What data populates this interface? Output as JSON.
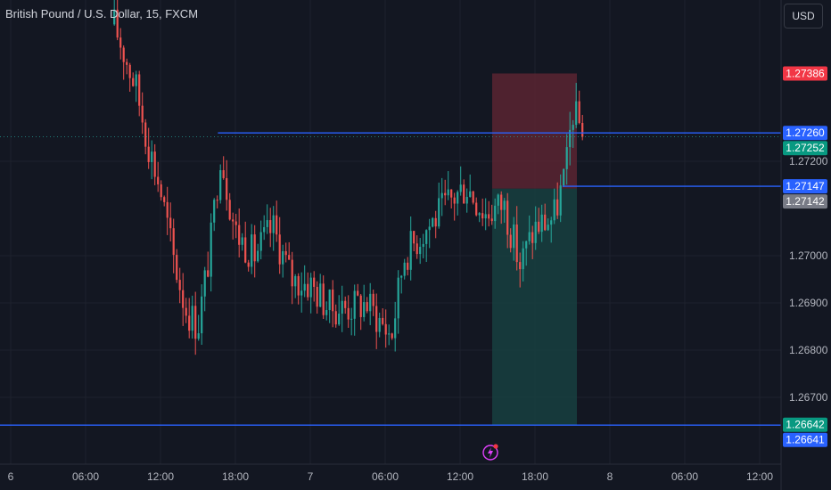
{
  "title": "British Pound / U.S. Dollar, 15, FXCM",
  "currency_button": "USD",
  "icons": {
    "alert": "lightning-icon"
  },
  "colors": {
    "background": "#131722",
    "up": "#26a69a",
    "down": "#ef5350",
    "line": "#2962ff",
    "stop_zone": "#5a2431",
    "target_zone": "#17403f",
    "grid": "#1e222d",
    "axis_text": "#b2b5be"
  },
  "chart_data": {
    "type": "candlestick",
    "symbol": "British Pound / U.S. Dollar",
    "interval": "15",
    "source": "FXCM",
    "y_axis": {
      "ticks": [
        1.267,
        1.268,
        1.269,
        1.27,
        1.272
      ],
      "tick_labels": [
        "1.26700",
        "1.26800",
        "1.26900",
        "1.27000",
        "1.27200"
      ],
      "range": [
        1.26615,
        1.27485
      ]
    },
    "x_axis": {
      "tick_labels": [
        "6",
        "06:00",
        "12:00",
        "18:00",
        "7",
        "06:00",
        "12:00",
        "18:00",
        "8",
        "06:00",
        "12:00"
      ]
    },
    "price_labels": [
      {
        "value": "1.27386",
        "color": "#f23645",
        "price": 1.27386
      },
      {
        "value": "1.27260",
        "color": "#2962ff",
        "price": 1.2726
      },
      {
        "value": "1.27252",
        "color": "#089981",
        "price": 1.27252
      },
      {
        "value": "1.27147",
        "color": "#2962ff",
        "price": 1.27147
      },
      {
        "value": "1.27142",
        "color": "#787b86",
        "price": 1.27142
      },
      {
        "value": "1.26642",
        "color": "#089981",
        "price": 1.26642
      },
      {
        "value": "1.26641",
        "color": "#2962ff",
        "price": 1.26641
      }
    ],
    "horizontal_lines": [
      {
        "price": 1.2726,
        "start": "day6 16:30"
      },
      {
        "price": 1.27147,
        "start": "day7 12:15"
      },
      {
        "price": 1.26641,
        "start": "chart start"
      }
    ],
    "position": {
      "type": "short",
      "entry": 1.27142,
      "stop": 1.27386,
      "target": 1.26642
    },
    "last_price": 1.27252
  }
}
